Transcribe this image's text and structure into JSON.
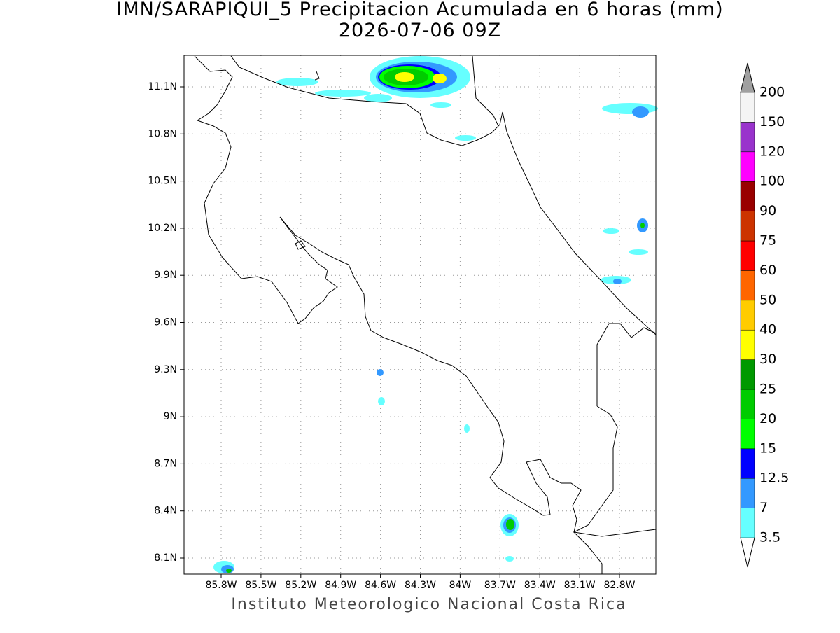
{
  "title": "IMN/SARAPIQUI_5 Precipitacion Acumulada en 6 horas (mm)",
  "subtitle": "2026-07-06 09Z",
  "map": {
    "xticks": [
      "85.8W",
      "85.5W",
      "85.2W",
      "84.9W",
      "84.6W",
      "84.3W",
      "84W",
      "83.7W",
      "83.4W",
      "83.1W",
      "82.8W"
    ],
    "yticks": [
      "11.1N",
      "10.8N",
      "10.5N",
      "10.2N",
      "9.9N",
      "9.6N",
      "9.3N",
      "9N",
      "8.7N",
      "8.4N",
      "8.1N"
    ]
  },
  "colorbar": {
    "levels": [
      3.5,
      7,
      12.5,
      15,
      20,
      25,
      30,
      40,
      50,
      60,
      75,
      90,
      100,
      120,
      150,
      200
    ],
    "colors": [
      "#66ffff",
      "#3399ff",
      "#0000ff",
      "#00ff00",
      "#00cc00",
      "#009900",
      "#ffff00",
      "#ffcc00",
      "#ff6600",
      "#ff0000",
      "#cc3300",
      "#990000",
      "#ff00ff",
      "#9933cc",
      "#f4f4f4"
    ]
  },
  "footer": "Instituto Meteorologico Nacional Costa Rica"
}
